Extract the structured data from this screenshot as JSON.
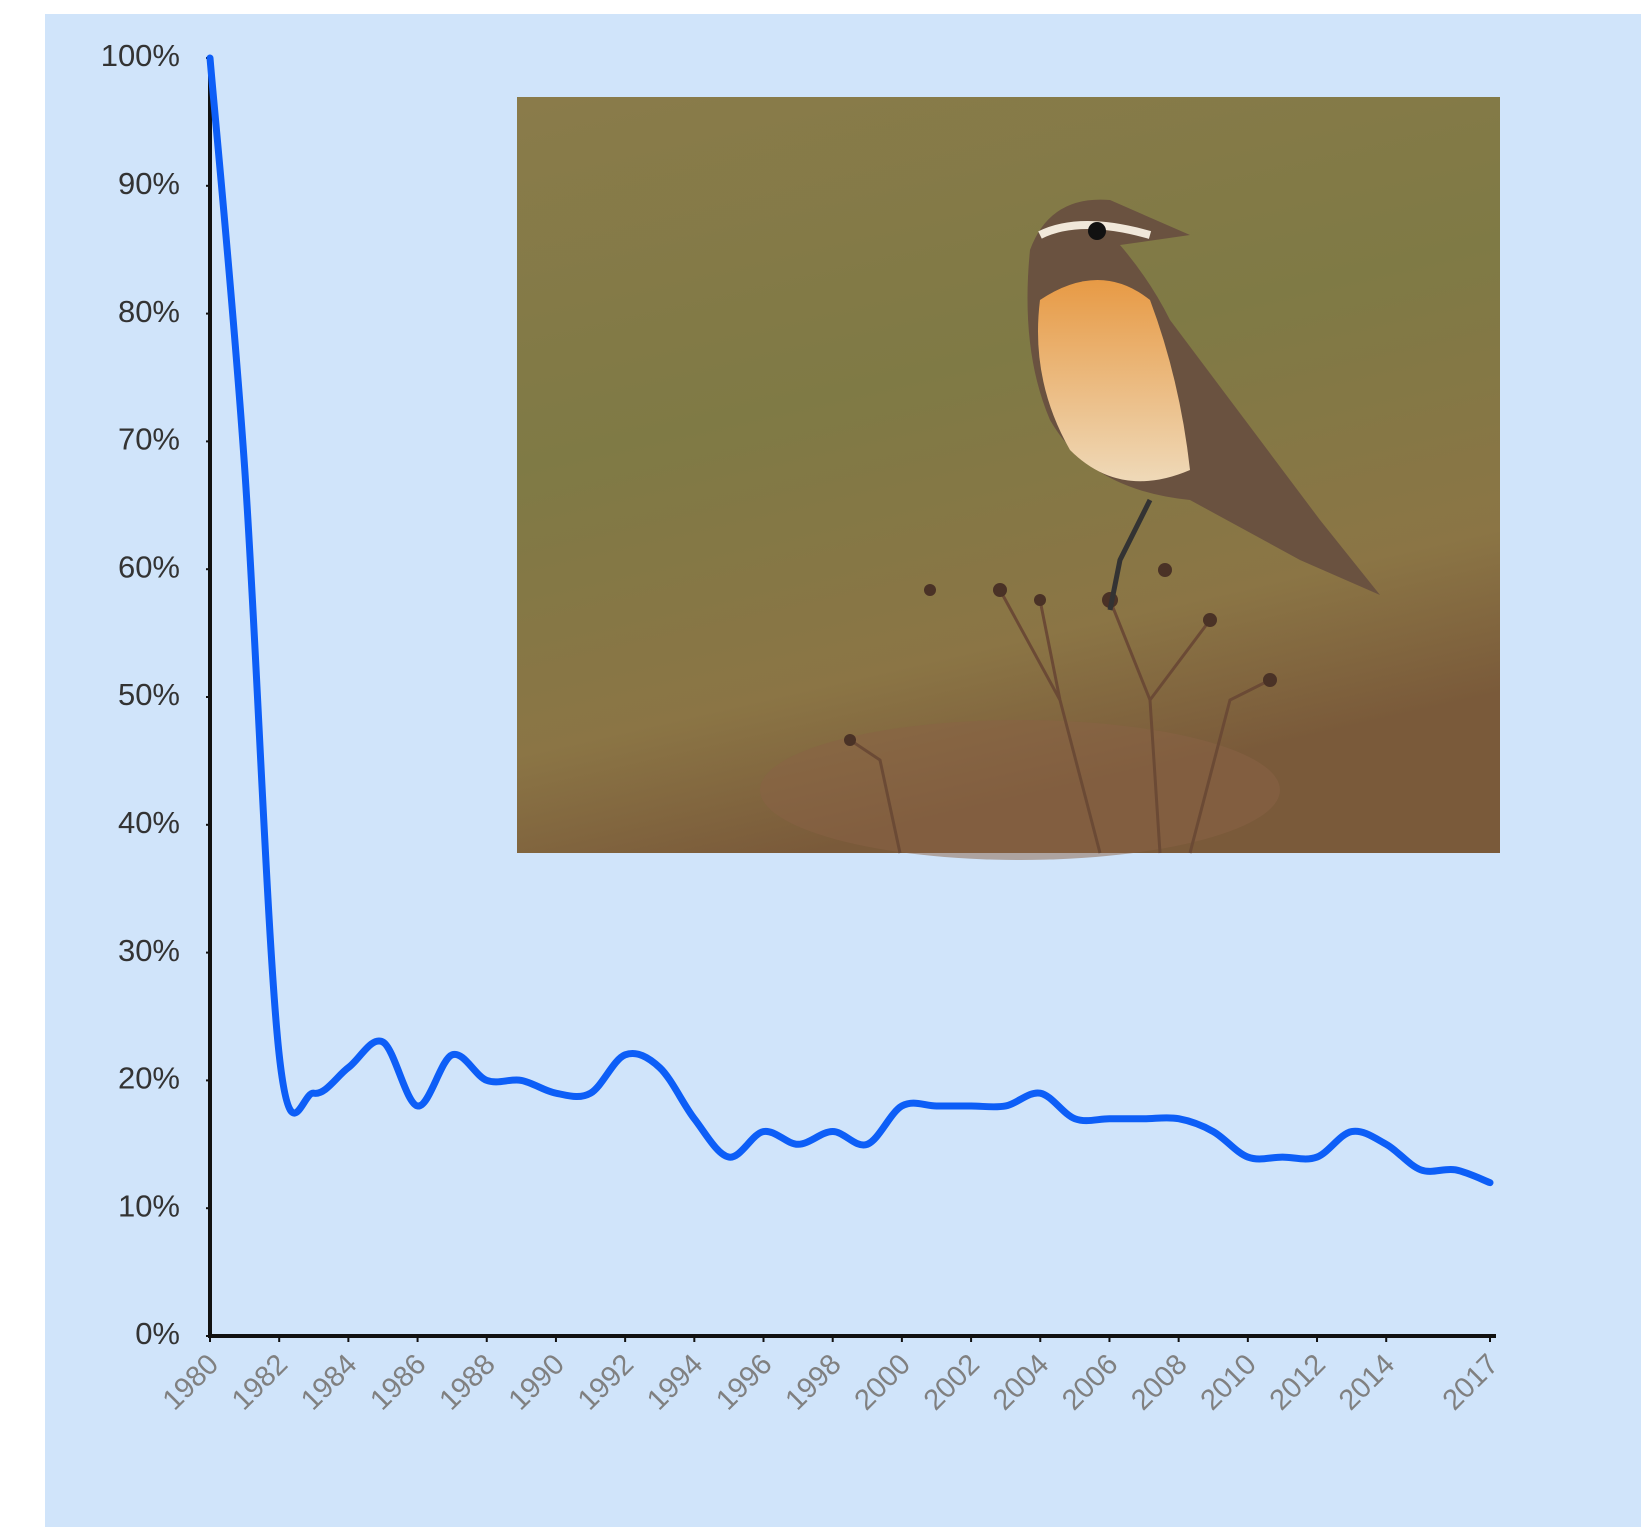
{
  "chart_data": {
    "type": "line",
    "x": [
      1980,
      1981,
      1982,
      1983,
      1984,
      1985,
      1986,
      1987,
      1988,
      1989,
      1990,
      1991,
      1992,
      1993,
      1994,
      1995,
      1996,
      1997,
      1998,
      1999,
      2000,
      2001,
      2002,
      2003,
      2004,
      2005,
      2006,
      2007,
      2008,
      2009,
      2010,
      2011,
      2012,
      2013,
      2014,
      2015,
      2016,
      2017
    ],
    "series": [
      {
        "color": "#0d5ef7",
        "values": [
          100,
          68,
          22,
          19,
          21,
          23,
          18,
          22,
          20,
          20,
          19,
          19,
          22,
          21,
          17,
          14,
          16,
          15,
          16,
          15,
          18,
          18,
          18,
          18,
          19,
          17,
          17,
          17,
          17,
          16,
          14,
          14,
          14,
          16,
          15,
          13,
          13,
          12
        ]
      }
    ],
    "xlim": [
      1980,
      2017
    ],
    "xticks": [
      1980,
      1982,
      1984,
      1986,
      1988,
      1990,
      1992,
      1994,
      1996,
      1998,
      2000,
      2002,
      2004,
      2006,
      2008,
      2010,
      2012,
      2014,
      2017
    ],
    "ylim": [
      0,
      100
    ],
    "yticks": [
      {
        "value": 0,
        "label": "0%"
      },
      {
        "value": 10,
        "label": "10%"
      },
      {
        "value": 20,
        "label": "20%"
      },
      {
        "value": 30,
        "label": "30%"
      },
      {
        "value": 40,
        "label": "40%"
      },
      {
        "value": 50,
        "label": "50%"
      },
      {
        "value": 60,
        "label": "60%"
      },
      {
        "value": 70,
        "label": "70%"
      },
      {
        "value": 80,
        "label": "80%"
      },
      {
        "value": 90,
        "label": "90%"
      },
      {
        "value": 100,
        "label": "100%"
      }
    ],
    "grid": false
  }
}
